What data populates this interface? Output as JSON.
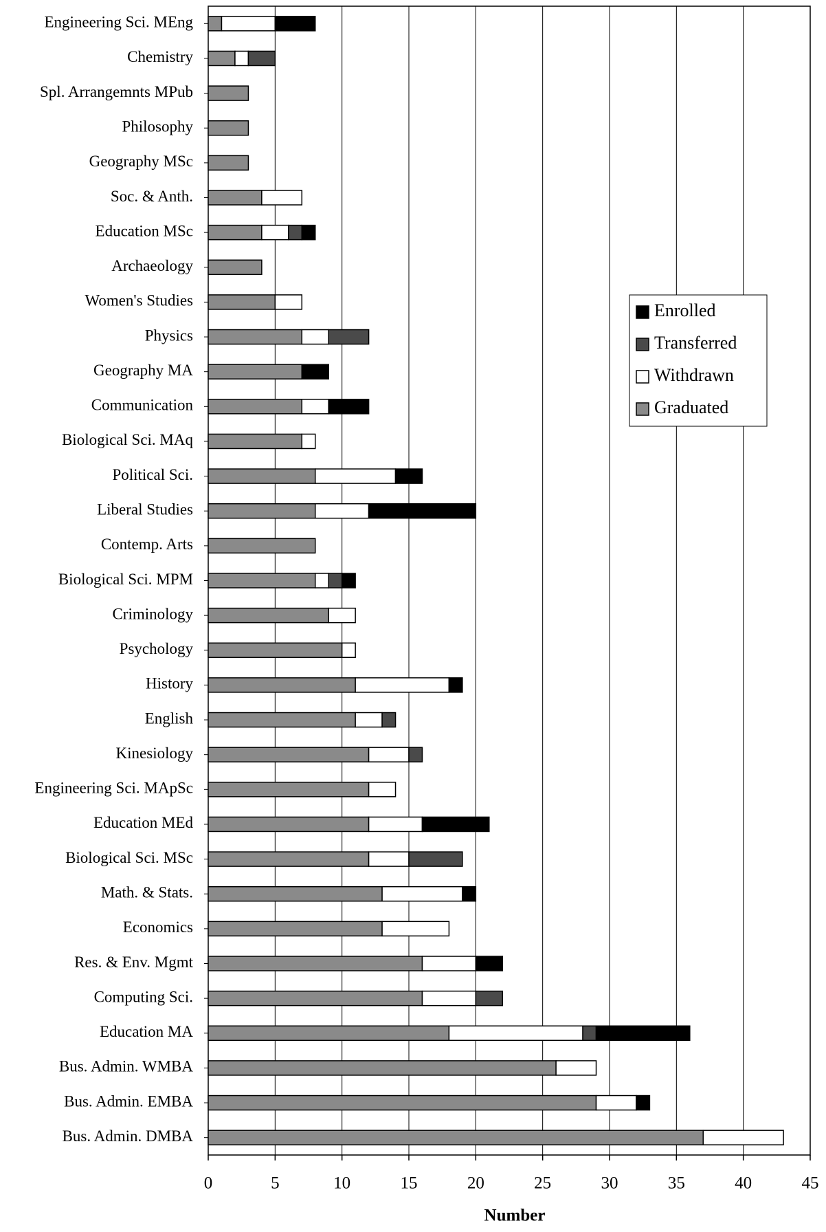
{
  "chart_data": {
    "type": "stacked_barh",
    "xlabel": "Number",
    "categories": [
      "Engineering Sci. MEng",
      "Chemistry",
      "Spl. Arrangemnts MPub",
      "Philosophy",
      "Geography MSc",
      "Soc. & Anth.",
      "Education MSc",
      "Archaeology",
      "Women's Studies",
      "Physics",
      "Geography MA",
      "Communication",
      "Biological Sci. MAq",
      "Political Sci.",
      "Liberal Studies",
      "Contemp. Arts",
      "Biological Sci. MPM",
      "Criminology",
      "Psychology",
      "History",
      "English",
      "Kinesiology",
      "Engineering Sci. MApSc",
      "Education MEd",
      "Biological Sci. MSc",
      "Math. & Stats.",
      "Economics",
      "Res. & Env. Mgmt",
      "Computing Sci.",
      "Education MA",
      "Bus. Admin. WMBA",
      "Bus. Admin. EMBA",
      "Bus. Admin. DMBA"
    ],
    "series": [
      {
        "name": "Enrolled",
        "color": "#000000",
        "values": [
          3,
          0,
          0,
          0,
          0,
          0,
          1,
          0,
          0,
          0,
          2,
          3,
          0,
          2,
          8,
          0,
          1,
          0,
          0,
          1,
          0,
          0,
          0,
          5,
          0,
          1,
          0,
          2,
          0,
          7,
          0,
          1,
          0
        ]
      },
      {
        "name": "Transferred",
        "color": "#4a4a4a",
        "values": [
          0,
          2,
          0,
          0,
          0,
          0,
          1,
          0,
          0,
          3,
          0,
          0,
          0,
          0,
          0,
          0,
          1,
          0,
          0,
          0,
          1,
          1,
          0,
          0,
          4,
          0,
          0,
          0,
          2,
          1,
          0,
          0,
          0
        ]
      },
      {
        "name": "Withdrawn",
        "color": "#ffffff",
        "values": [
          4,
          1,
          0,
          0,
          0,
          3,
          2,
          0,
          2,
          2,
          0,
          2,
          1,
          6,
          4,
          0,
          1,
          2,
          1,
          7,
          2,
          3,
          2,
          4,
          3,
          6,
          5,
          4,
          4,
          10,
          3,
          3,
          6
        ]
      },
      {
        "name": "Graduated",
        "color": "#8a8a8a",
        "values": [
          1,
          2,
          3,
          3,
          3,
          4,
          4,
          4,
          5,
          7,
          7,
          7,
          7,
          8,
          8,
          8,
          8,
          9,
          10,
          11,
          11,
          12,
          12,
          12,
          12,
          13,
          13,
          16,
          16,
          18,
          26,
          29,
          37
        ]
      }
    ],
    "xlim": [
      0,
      45
    ],
    "xticks": [
      0,
      5,
      10,
      15,
      20,
      25,
      30,
      35,
      40,
      45
    ],
    "grid": true,
    "legend": "right"
  }
}
